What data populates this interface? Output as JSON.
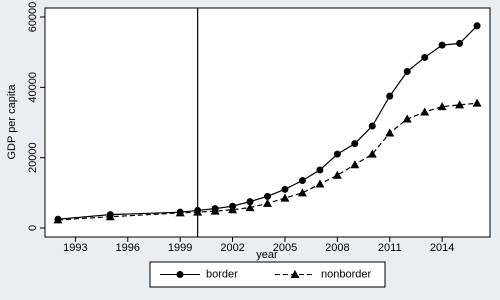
{
  "chart_data": {
    "type": "line",
    "x_label": "year",
    "y_label": "GDP per capita",
    "x": [
      1992,
      1995,
      1999,
      2000,
      2001,
      2002,
      2003,
      2004,
      2005,
      2006,
      2007,
      2008,
      2009,
      2010,
      2011,
      2012,
      2013,
      2014,
      2015,
      2016
    ],
    "series": [
      {
        "name": "border",
        "color": "#000000",
        "marker": "circle",
        "dash": false,
        "values": [
          2500,
          3800,
          4500,
          5000,
          5500,
          6200,
          7500,
          9000,
          11000,
          13500,
          16500,
          21000,
          24000,
          29000,
          37500,
          44500,
          48500,
          52000,
          52500,
          57500
        ]
      },
      {
        "name": "nonborder",
        "color": "#000000",
        "marker": "triangle",
        "dash": true,
        "values": [
          2300,
          3200,
          4300,
          4500,
          4800,
          5200,
          5800,
          7000,
          8500,
          10000,
          12500,
          15000,
          18000,
          21000,
          27000,
          31000,
          33000,
          34500,
          35000,
          35500
        ]
      }
    ],
    "vline": 2000,
    "xlim": [
      1991.26,
      2016.74
    ],
    "ylim": [
      -2560,
      62560
    ],
    "xticks": [
      1993,
      1996,
      1999,
      2002,
      2005,
      2008,
      2011,
      2014
    ],
    "yticks": [
      0,
      20000,
      40000,
      60000
    ],
    "legend": "bottom"
  }
}
